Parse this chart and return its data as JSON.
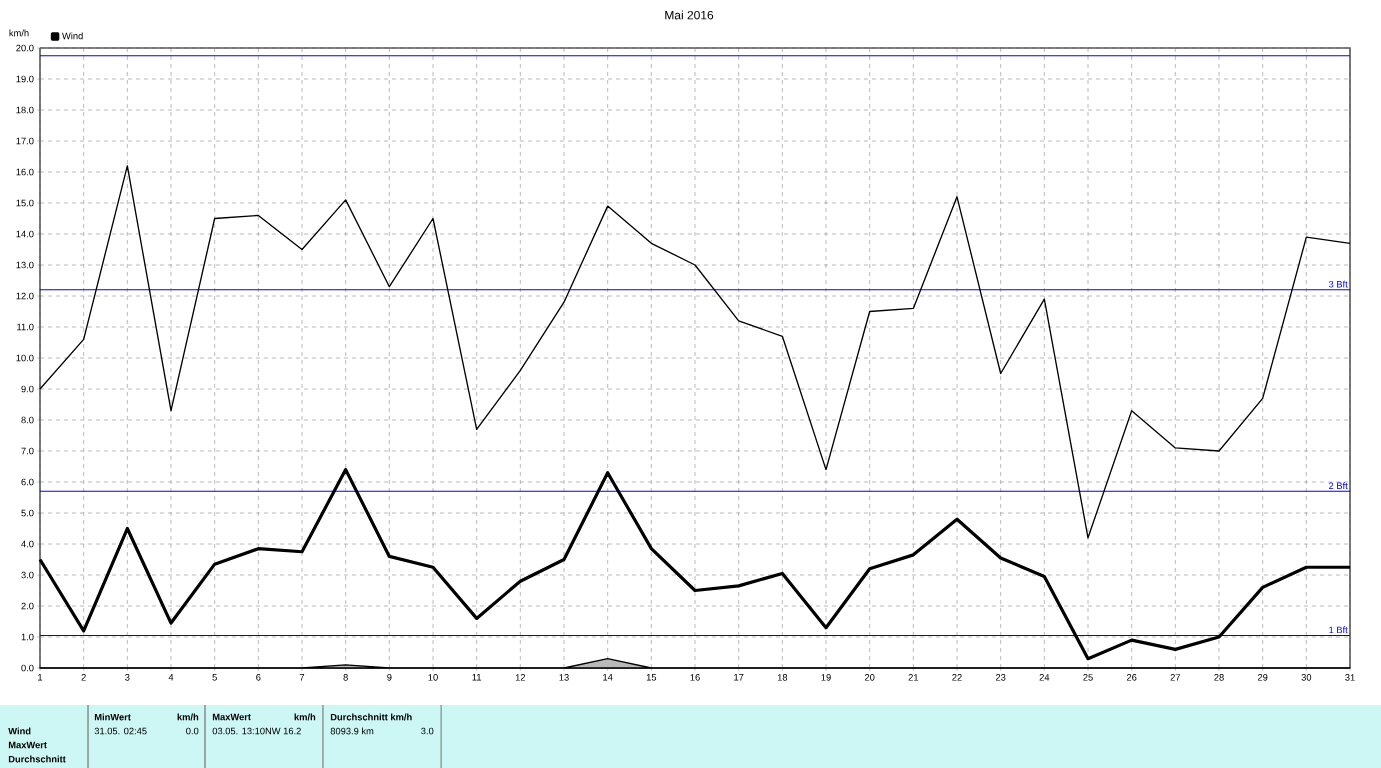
{
  "chart_data": {
    "type": "line",
    "title": "Mai 2016",
    "ylabel": "km/h",
    "x": [
      1,
      2,
      3,
      4,
      5,
      6,
      7,
      8,
      9,
      10,
      11,
      12,
      13,
      14,
      15,
      16,
      17,
      18,
      19,
      20,
      21,
      22,
      23,
      24,
      25,
      26,
      27,
      28,
      29,
      30,
      31
    ],
    "series": [
      {
        "type": "area",
        "color": "#000000",
        "values": [
          0,
          0,
          0,
          0,
          0,
          0,
          0,
          0.1,
          0,
          0,
          0,
          0,
          0,
          0.3,
          0,
          0,
          0,
          0,
          0,
          0,
          0,
          0,
          0,
          0,
          0,
          0,
          0,
          0,
          0,
          0,
          0
        ]
      },
      {
        "color": "#000000",
        "values": [
          9.0,
          10.6,
          16.2,
          8.3,
          14.5,
          14.6,
          13.5,
          15.1,
          12.3,
          14.5,
          7.7,
          9.6,
          11.8,
          14.9,
          13.7,
          13.0,
          11.2,
          10.7,
          6.4,
          11.5,
          11.6,
          15.2,
          9.5,
          11.9,
          4.2,
          8.3,
          7.1,
          7.0,
          8.7,
          13.9,
          13.7
        ]
      },
      {
        "name": "Wind",
        "color": "#000000",
        "values": [
          3.5,
          1.2,
          4.5,
          1.45,
          3.35,
          3.85,
          3.75,
          6.4,
          3.6,
          3.25,
          1.6,
          2.8,
          3.5,
          6.3,
          3.85,
          2.5,
          2.65,
          3.05,
          1.3,
          3.2,
          3.65,
          4.8,
          3.55,
          2.95,
          0.3,
          0.9,
          0.6,
          1.0,
          2.6,
          3.25,
          3.25
        ]
      }
    ],
    "xlim": [
      1,
      31
    ],
    "xticks": [
      1,
      2,
      3,
      4,
      5,
      6,
      7,
      8,
      9,
      10,
      11,
      12,
      13,
      14,
      15,
      16,
      17,
      18,
      19,
      20,
      21,
      22,
      23,
      24,
      25,
      26,
      27,
      28,
      29,
      30,
      31
    ],
    "ylim": [
      0,
      20
    ],
    "yticks": [
      {
        "value": 0,
        "label": "0.0"
      },
      {
        "value": 1,
        "label": "1.0"
      },
      {
        "value": 2,
        "label": "2.0"
      },
      {
        "value": 3,
        "label": "3.0"
      },
      {
        "value": 4,
        "label": "4.0"
      },
      {
        "value": 5,
        "label": "5.0"
      },
      {
        "value": 6,
        "label": "6.0"
      },
      {
        "value": 7,
        "label": "7.0"
      },
      {
        "value": 8,
        "label": "8.0"
      },
      {
        "value": 9,
        "label": "9.0"
      },
      {
        "value": 10,
        "label": "10.0"
      },
      {
        "value": 11,
        "label": "11.0"
      },
      {
        "value": 12,
        "label": "12.0"
      },
      {
        "value": 13,
        "label": "13.0"
      },
      {
        "value": 14,
        "label": "14.0"
      },
      {
        "value": 15,
        "label": "15.0"
      },
      {
        "value": 16,
        "label": "16.0"
      },
      {
        "value": 17,
        "label": "17.0"
      },
      {
        "value": 18,
        "label": "18.0"
      },
      {
        "value": 19,
        "label": "19.0"
      },
      {
        "value": 20,
        "label": "20.0"
      }
    ],
    "ref_lines": [
      {
        "axis": "y",
        "value": 1.05,
        "label": "1 Bft",
        "color": "#0000ff"
      },
      {
        "axis": "y",
        "value": 5.7,
        "label": "2 Bft",
        "color": "#0000ff"
      },
      {
        "axis": "y",
        "value": 12.2,
        "label": "3 Bft",
        "color": "#0000ff"
      },
      {
        "axis": "y",
        "value": 19.75,
        "color": "#0000ff"
      }
    ],
    "grid": true,
    "legend": "top left",
    "annotations": [
      "Wind",
      "MaxWert",
      "Durchschnitt",
      "MinWert",
      "km/h",
      "31.05.  02:45",
      "0.0",
      "MaxWert",
      "km/h",
      "03.05.  13:10NW 16.2",
      "Durchschnitt km/h",
      "8093.9 km",
      "3.0"
    ]
  }
}
